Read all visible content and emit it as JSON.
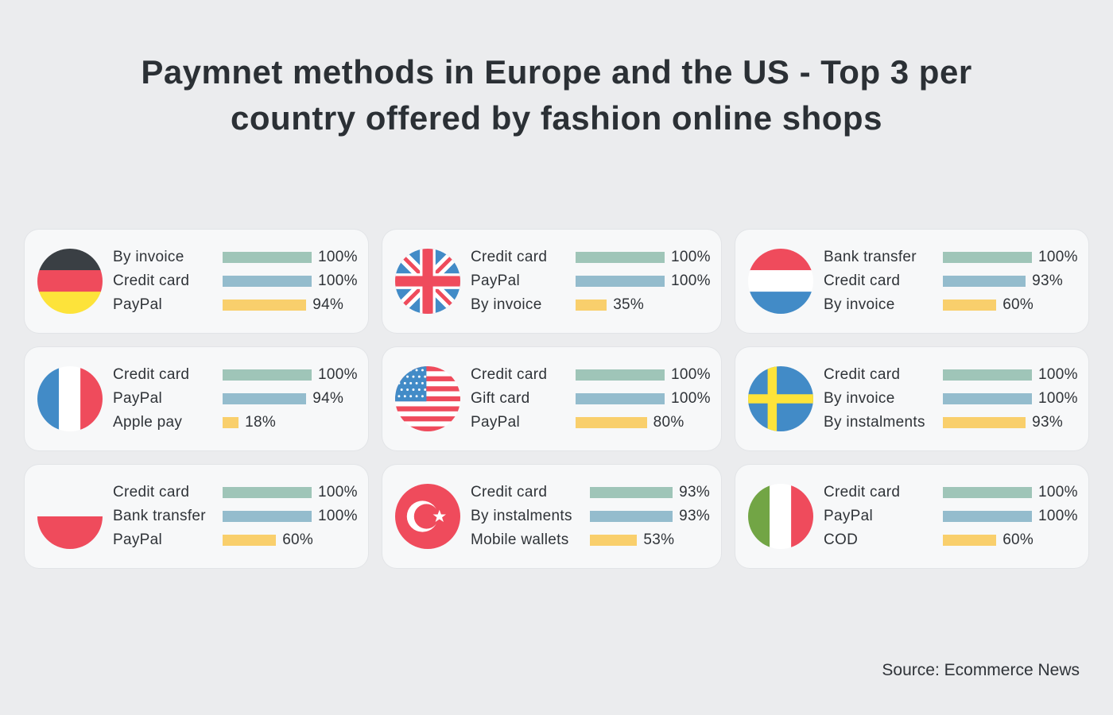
{
  "title_line1": "Paymnet methods in Europe and the US - Top 3 per",
  "title_line2": "country offered by fashion online shops",
  "source": "Source: Ecommerce News",
  "colors": {
    "bar1": "#9fc5b8",
    "bar2": "#94bccd",
    "bar3": "#f9cf6c",
    "background": "#ebecee",
    "card": "#f7f8f9"
  },
  "chart_data": {
    "type": "bar",
    "orientation": "horizontal",
    "unit": "%",
    "xlim": [
      0,
      100
    ],
    "panels": [
      {
        "country": "Germany",
        "flag": "flag-germany",
        "items": [
          {
            "label": "By invoice",
            "value": 100
          },
          {
            "label": "Credit card",
            "value": 100
          },
          {
            "label": "PayPal",
            "value": 94
          }
        ]
      },
      {
        "country": "United Kingdom",
        "flag": "flag-uk",
        "items": [
          {
            "label": "Credit card",
            "value": 100
          },
          {
            "label": "PayPal",
            "value": 100
          },
          {
            "label": "By invoice",
            "value": 35
          }
        ]
      },
      {
        "country": "Netherlands",
        "flag": "flag-netherlands",
        "items": [
          {
            "label": "Bank transfer",
            "value": 100
          },
          {
            "label": "Credit card",
            "value": 93
          },
          {
            "label": "By invoice",
            "value": 60
          }
        ]
      },
      {
        "country": "France",
        "flag": "flag-france",
        "items": [
          {
            "label": "Credit card",
            "value": 100
          },
          {
            "label": "PayPal",
            "value": 94
          },
          {
            "label": "Apple pay",
            "value": 18
          }
        ]
      },
      {
        "country": "United States",
        "flag": "flag-usa",
        "items": [
          {
            "label": "Credit card",
            "value": 100
          },
          {
            "label": "Gift card",
            "value": 100
          },
          {
            "label": "PayPal",
            "value": 80
          }
        ]
      },
      {
        "country": "Sweden",
        "flag": "flag-sweden",
        "items": [
          {
            "label": "Credit card",
            "value": 100
          },
          {
            "label": "By invoice",
            "value": 100
          },
          {
            "label": "By instalments",
            "value": 93
          }
        ]
      },
      {
        "country": "Poland",
        "flag": "flag-poland",
        "items": [
          {
            "label": "Credit card",
            "value": 100
          },
          {
            "label": "Bank transfer",
            "value": 100
          },
          {
            "label": "PayPal",
            "value": 60
          }
        ]
      },
      {
        "country": "Turkey",
        "flag": "flag-turkey",
        "items": [
          {
            "label": "Credit card",
            "value": 93
          },
          {
            "label": "By instalments",
            "value": 93
          },
          {
            "label": "Mobile wallets",
            "value": 53
          }
        ]
      },
      {
        "country": "Italy",
        "flag": "flag-italy",
        "items": [
          {
            "label": "Credit card",
            "value": 100
          },
          {
            "label": "PayPal",
            "value": 100
          },
          {
            "label": "COD",
            "value": 60
          }
        ]
      }
    ]
  }
}
